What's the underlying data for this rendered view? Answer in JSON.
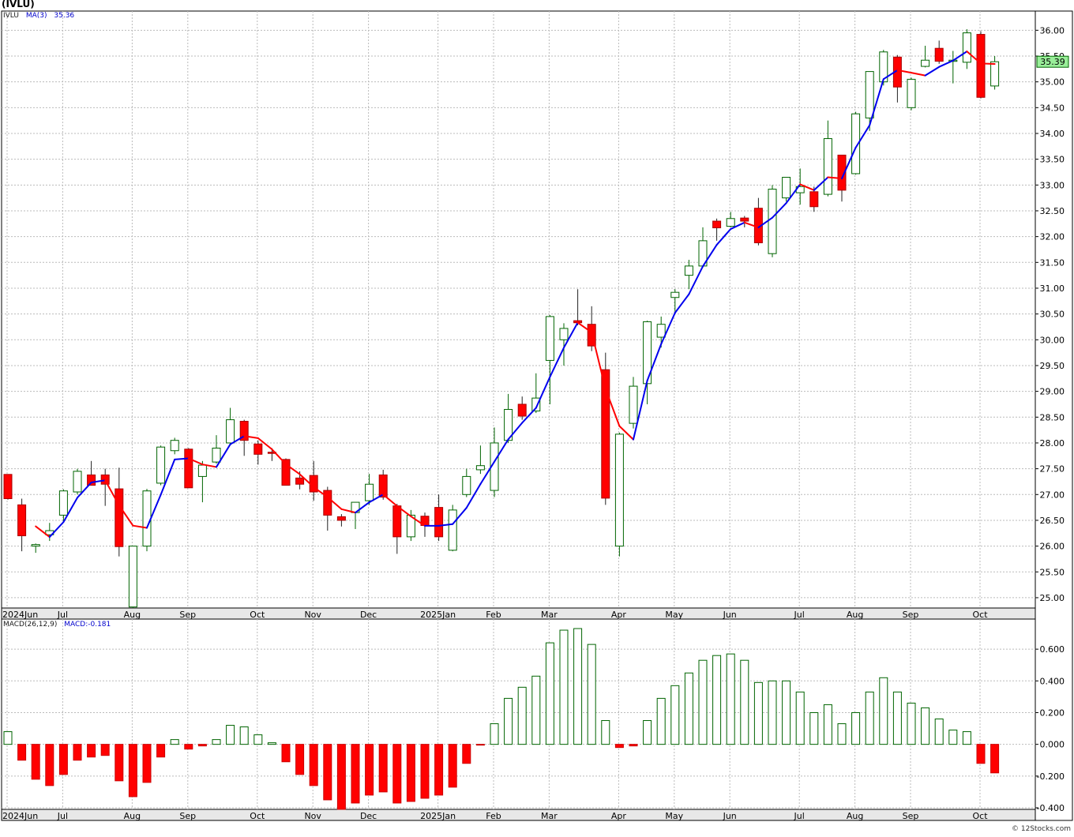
{
  "header": {
    "symbol_label": "(IVLU)",
    "price_legend_symbol": "IVLU",
    "price_legend_ma": "MA(3)",
    "price_legend_ma_value": "35.36",
    "last_price_tag": "35.39",
    "macd_legend": "MACD(26,12,9)",
    "macd_legend_value": "MACD:-0.181",
    "credit": "© 12Stocks.com"
  },
  "colors": {
    "up_candle": "#ffffff",
    "up_border": "#006400",
    "down_candle": "#ff0000",
    "down_border": "#aa0000",
    "ma_up": "#0000ee",
    "ma_down": "#ff0000",
    "macd_pos": "#006400",
    "macd_neg": "#ff0000",
    "grid": "#bbbbbb",
    "price_tag_bg": "#99ee99"
  },
  "chart_data": [
    {
      "type": "candlestick",
      "title": "(IVLU)",
      "interval": "weekly",
      "ylim": [
        24.8,
        36.25
      ],
      "y_ticks": [
        "25.00",
        "25.50",
        "26.00",
        "26.50",
        "27.00",
        "27.50",
        "28.00",
        "28.50",
        "29.00",
        "29.50",
        "30.00",
        "30.50",
        "31.00",
        "31.50",
        "32.00",
        "32.50",
        "33.00",
        "33.50",
        "34.00",
        "34.50",
        "35.00",
        "35.50",
        "36.00"
      ],
      "x_ticks": [
        {
          "label": "2024Jun",
          "index": 0
        },
        {
          "label": "Jul",
          "index": 4
        },
        {
          "label": "Aug",
          "index": 9
        },
        {
          "label": "Sep",
          "index": 13
        },
        {
          "label": "Oct",
          "index": 18
        },
        {
          "label": "Nov",
          "index": 22
        },
        {
          "label": "Dec",
          "index": 26
        },
        {
          "label": "2025Jan",
          "index": 31
        },
        {
          "label": "Feb",
          "index": 35
        },
        {
          "label": "Mar",
          "index": 39
        },
        {
          "label": "Apr",
          "index": 44
        },
        {
          "label": "May",
          "index": 48
        },
        {
          "label": "Jun",
          "index": 52
        },
        {
          "label": "Jul",
          "index": 57
        },
        {
          "label": "Aug",
          "index": 61
        },
        {
          "label": "Sep",
          "index": 65
        },
        {
          "label": "Oct",
          "index": 70
        }
      ],
      "candles": [
        {
          "o": 27.39,
          "h": 27.39,
          "l": 26.9,
          "c": 26.92
        },
        {
          "o": 26.8,
          "h": 26.92,
          "l": 25.9,
          "c": 26.2
        },
        {
          "o": 26.0,
          "h": 26.05,
          "l": 25.87,
          "c": 26.03
        },
        {
          "o": 26.22,
          "h": 26.45,
          "l": 26.1,
          "c": 26.3
        },
        {
          "o": 26.6,
          "h": 27.1,
          "l": 26.48,
          "c": 27.07
        },
        {
          "o": 27.05,
          "h": 27.5,
          "l": 27.0,
          "c": 27.45
        },
        {
          "o": 27.38,
          "h": 27.65,
          "l": 27.18,
          "c": 27.18
        },
        {
          "o": 27.38,
          "h": 27.5,
          "l": 26.78,
          "c": 27.2
        },
        {
          "o": 27.11,
          "h": 27.52,
          "l": 25.8,
          "c": 25.99
        },
        {
          "o": 24.82,
          "h": 26.0,
          "l": 24.8,
          "c": 26.0
        },
        {
          "o": 26.0,
          "h": 27.11,
          "l": 25.9,
          "c": 27.07
        },
        {
          "o": 27.22,
          "h": 27.95,
          "l": 27.18,
          "c": 27.92
        },
        {
          "o": 27.85,
          "h": 28.1,
          "l": 27.78,
          "c": 28.05
        },
        {
          "o": 27.88,
          "h": 27.9,
          "l": 27.13,
          "c": 27.13
        },
        {
          "o": 27.35,
          "h": 27.65,
          "l": 26.85,
          "c": 27.57
        },
        {
          "o": 27.63,
          "h": 28.15,
          "l": 27.6,
          "c": 27.9
        },
        {
          "o": 28.0,
          "h": 28.68,
          "l": 27.95,
          "c": 28.45
        },
        {
          "o": 28.42,
          "h": 28.45,
          "l": 27.75,
          "c": 28.05
        },
        {
          "o": 27.98,
          "h": 28.05,
          "l": 27.58,
          "c": 27.78
        },
        {
          "o": 27.82,
          "h": 27.9,
          "l": 27.65,
          "c": 27.8
        },
        {
          "o": 27.68,
          "h": 27.7,
          "l": 27.18,
          "c": 27.18
        },
        {
          "o": 27.32,
          "h": 27.45,
          "l": 27.1,
          "c": 27.2
        },
        {
          "o": 27.37,
          "h": 27.65,
          "l": 26.88,
          "c": 27.05
        },
        {
          "o": 27.08,
          "h": 27.15,
          "l": 26.3,
          "c": 26.6
        },
        {
          "o": 26.57,
          "h": 26.62,
          "l": 26.38,
          "c": 26.5
        },
        {
          "o": 26.65,
          "h": 26.85,
          "l": 26.33,
          "c": 26.85
        },
        {
          "o": 26.88,
          "h": 27.4,
          "l": 26.8,
          "c": 27.2
        },
        {
          "o": 27.38,
          "h": 27.48,
          "l": 26.9,
          "c": 26.95
        },
        {
          "o": 26.78,
          "h": 26.82,
          "l": 25.85,
          "c": 26.18
        },
        {
          "o": 26.18,
          "h": 26.7,
          "l": 26.1,
          "c": 26.6
        },
        {
          "o": 26.58,
          "h": 26.65,
          "l": 26.18,
          "c": 26.4
        },
        {
          "o": 26.75,
          "h": 27.0,
          "l": 26.1,
          "c": 26.18
        },
        {
          "o": 25.92,
          "h": 26.8,
          "l": 25.9,
          "c": 26.7
        },
        {
          "o": 27.0,
          "h": 27.5,
          "l": 26.95,
          "c": 27.35
        },
        {
          "o": 27.48,
          "h": 27.95,
          "l": 27.4,
          "c": 27.56
        },
        {
          "o": 27.08,
          "h": 28.3,
          "l": 26.95,
          "c": 28.0
        },
        {
          "o": 28.05,
          "h": 28.95,
          "l": 28.0,
          "c": 28.65
        },
        {
          "o": 28.75,
          "h": 28.9,
          "l": 28.45,
          "c": 28.52
        },
        {
          "o": 28.62,
          "h": 29.35,
          "l": 28.58,
          "c": 28.87
        },
        {
          "o": 29.6,
          "h": 30.48,
          "l": 28.75,
          "c": 30.45
        },
        {
          "o": 30.0,
          "h": 30.32,
          "l": 29.5,
          "c": 30.22
        },
        {
          "o": 30.37,
          "h": 30.98,
          "l": 30.28,
          "c": 30.33
        },
        {
          "o": 30.3,
          "h": 30.65,
          "l": 29.78,
          "c": 29.88
        },
        {
          "o": 29.42,
          "h": 29.75,
          "l": 26.8,
          "c": 26.93
        },
        {
          "o": 26.0,
          "h": 28.2,
          "l": 25.8,
          "c": 28.17
        },
        {
          "o": 28.38,
          "h": 29.28,
          "l": 28.28,
          "c": 29.1
        },
        {
          "o": 29.15,
          "h": 30.37,
          "l": 28.75,
          "c": 30.35
        },
        {
          "o": 30.05,
          "h": 30.45,
          "l": 29.85,
          "c": 30.3
        },
        {
          "o": 30.82,
          "h": 30.98,
          "l": 30.55,
          "c": 30.92
        },
        {
          "o": 31.25,
          "h": 31.55,
          "l": 30.98,
          "c": 31.43
        },
        {
          "o": 31.43,
          "h": 32.18,
          "l": 31.4,
          "c": 31.92
        },
        {
          "o": 32.3,
          "h": 32.35,
          "l": 31.92,
          "c": 32.17
        },
        {
          "o": 32.2,
          "h": 32.48,
          "l": 32.18,
          "c": 32.35
        },
        {
          "o": 32.36,
          "h": 32.4,
          "l": 32.18,
          "c": 32.3
        },
        {
          "o": 32.55,
          "h": 32.75,
          "l": 31.83,
          "c": 31.88
        },
        {
          "o": 31.67,
          "h": 33.0,
          "l": 31.6,
          "c": 32.92
        },
        {
          "o": 32.75,
          "h": 33.15,
          "l": 32.68,
          "c": 33.15
        },
        {
          "o": 32.85,
          "h": 33.32,
          "l": 32.62,
          "c": 32.97
        },
        {
          "o": 32.87,
          "h": 32.97,
          "l": 32.48,
          "c": 32.58
        },
        {
          "o": 32.82,
          "h": 34.25,
          "l": 32.78,
          "c": 33.9
        },
        {
          "o": 33.58,
          "h": 33.58,
          "l": 32.68,
          "c": 32.9
        },
        {
          "o": 33.22,
          "h": 34.42,
          "l": 33.2,
          "c": 34.38
        },
        {
          "o": 34.3,
          "h": 35.2,
          "l": 34.05,
          "c": 35.2
        },
        {
          "o": 35.0,
          "h": 35.62,
          "l": 34.93,
          "c": 35.58
        },
        {
          "o": 35.48,
          "h": 35.52,
          "l": 34.6,
          "c": 34.9
        },
        {
          "o": 34.5,
          "h": 35.08,
          "l": 34.45,
          "c": 35.05
        },
        {
          "o": 35.3,
          "h": 35.7,
          "l": 35.28,
          "c": 35.42
        },
        {
          "o": 35.65,
          "h": 35.8,
          "l": 35.35,
          "c": 35.4
        },
        {
          "o": 35.42,
          "h": 35.6,
          "l": 34.97,
          "c": 35.42
        },
        {
          "o": 35.38,
          "h": 36.02,
          "l": 35.25,
          "c": 35.95
        },
        {
          "o": 35.92,
          "h": 35.98,
          "l": 34.68,
          "c": 34.7
        },
        {
          "o": 34.92,
          "h": 35.5,
          "l": 34.85,
          "c": 35.39
        }
      ],
      "ma_period": 3
    },
    {
      "type": "bar",
      "title": "MACD(26,12,9)",
      "ylim": [
        -0.41,
        0.76
      ],
      "y_ticks": [
        "-0.400",
        "-0.200",
        "0.000",
        "0.200",
        "0.400",
        "0.600"
      ],
      "values": [
        0.08,
        -0.1,
        -0.22,
        -0.26,
        -0.19,
        -0.1,
        -0.08,
        -0.07,
        -0.23,
        -0.33,
        -0.24,
        -0.08,
        0.03,
        -0.03,
        -0.01,
        0.03,
        0.12,
        0.11,
        0.06,
        0.01,
        -0.11,
        -0.19,
        -0.26,
        -0.35,
        -0.41,
        -0.37,
        -0.32,
        -0.3,
        -0.37,
        -0.36,
        -0.34,
        -0.32,
        -0.27,
        -0.12,
        -0.005,
        0.13,
        0.29,
        0.36,
        0.43,
        0.64,
        0.72,
        0.73,
        0.63,
        0.15,
        -0.02,
        -0.01,
        0.15,
        0.29,
        0.37,
        0.45,
        0.53,
        0.56,
        0.57,
        0.53,
        0.39,
        0.4,
        0.4,
        0.33,
        0.2,
        0.25,
        0.13,
        0.2,
        0.33,
        0.42,
        0.33,
        0.26,
        0.23,
        0.16,
        0.09,
        0.08,
        -0.12,
        -0.18
      ]
    }
  ]
}
